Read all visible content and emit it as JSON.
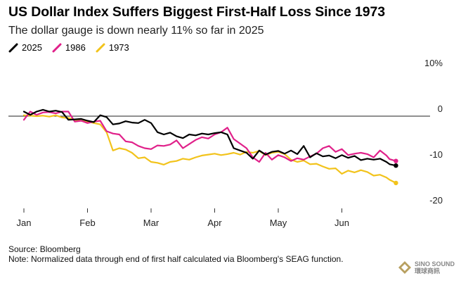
{
  "chart_data": {
    "type": "line",
    "title": "US Dollar Index Suffers Biggest First-Half Loss Since 1973",
    "subtitle": "The dollar gauge is down nearly 11% so far in 2025",
    "x_ticks": [
      "Jan",
      "Feb",
      "Mar",
      "Apr",
      "May",
      "Jun"
    ],
    "x_range": [
      0,
      6
    ],
    "y_ticks": [
      {
        "value": 10,
        "label": "10%"
      },
      {
        "value": 0,
        "label": "0"
      },
      {
        "value": -10,
        "label": "-10"
      },
      {
        "value": -20,
        "label": "-20"
      }
    ],
    "ylim": [
      -20,
      10
    ],
    "zero_line": true,
    "legend_position": "top-left",
    "series": [
      {
        "name": "2025",
        "color": "#000000",
        "x": [
          0.0,
          0.1,
          0.2,
          0.3,
          0.4,
          0.5,
          0.6,
          0.7,
          0.8,
          0.9,
          1.0,
          1.1,
          1.2,
          1.3,
          1.4,
          1.5,
          1.6,
          1.7,
          1.8,
          1.9,
          2.0,
          2.1,
          2.2,
          2.3,
          2.4,
          2.5,
          2.6,
          2.7,
          2.8,
          2.9,
          3.0,
          3.1,
          3.2,
          3.3,
          3.4,
          3.5,
          3.6,
          3.7,
          3.8,
          3.9,
          4.0,
          4.1,
          4.2,
          4.3,
          4.4,
          4.5,
          4.6,
          4.7,
          4.8,
          4.9,
          5.0,
          5.1,
          5.2,
          5.3,
          5.4,
          5.5,
          5.6,
          5.7,
          5.75,
          5.85
        ],
        "values": [
          1.0,
          0.3,
          1.0,
          1.4,
          1.0,
          1.2,
          0.9,
          -0.8,
          -0.7,
          -0.6,
          -1.0,
          -1.3,
          0.2,
          -0.2,
          -1.8,
          -1.6,
          -1.1,
          -1.4,
          -1.5,
          -0.8,
          -1.5,
          -3.5,
          -4.0,
          -3.6,
          -4.4,
          -4.8,
          -4.0,
          -4.2,
          -3.8,
          -4.0,
          -3.7,
          -3.5,
          -4.0,
          -7.0,
          -7.5,
          -8.0,
          -9.3,
          -7.5,
          -8.4,
          -7.8,
          -7.6,
          -8.2,
          -7.5,
          -8.3,
          -6.5,
          -9.0,
          -8.1,
          -8.8,
          -8.6,
          -9.2,
          -8.5,
          -9.1,
          -8.7,
          -9.6,
          -9.3,
          -9.5,
          -9.3,
          -10.0,
          -10.5,
          -10.8
        ]
      },
      {
        "name": "1986",
        "color": "#e0218a",
        "x": [
          0.0,
          0.1,
          0.2,
          0.3,
          0.4,
          0.5,
          0.6,
          0.7,
          0.8,
          0.9,
          1.0,
          1.1,
          1.2,
          1.3,
          1.4,
          1.5,
          1.6,
          1.7,
          1.8,
          1.9,
          2.0,
          2.1,
          2.2,
          2.3,
          2.4,
          2.5,
          2.6,
          2.7,
          2.8,
          2.9,
          3.0,
          3.1,
          3.2,
          3.3,
          3.4,
          3.5,
          3.6,
          3.7,
          3.8,
          3.9,
          4.0,
          4.1,
          4.2,
          4.3,
          4.4,
          4.5,
          4.6,
          4.7,
          4.8,
          4.9,
          5.0,
          5.1,
          5.2,
          5.3,
          5.4,
          5.5,
          5.6,
          5.7,
          5.75,
          5.85
        ],
        "values": [
          -0.8,
          1.0,
          0.3,
          0.8,
          0.9,
          0.6,
          1.0,
          1.0,
          -1.2,
          -1.0,
          -1.5,
          -1.2,
          -1.0,
          -3.3,
          -3.8,
          -4.0,
          -5.5,
          -5.7,
          -6.5,
          -7.0,
          -7.2,
          -6.4,
          -6.5,
          -6.2,
          -5.3,
          -7.0,
          -6.1,
          -5.2,
          -4.6,
          -4.9,
          -4.0,
          -3.5,
          -2.5,
          -5.0,
          -6.0,
          -7.0,
          -9.0,
          -10.0,
          -8.0,
          -9.5,
          -8.5,
          -9.0,
          -9.8,
          -9.2,
          -9.5,
          -8.8,
          -8.2,
          -7.0,
          -6.5,
          -7.8,
          -7.2,
          -8.5,
          -8.2,
          -8.0,
          -8.3,
          -9.0,
          -7.5,
          -8.6,
          -9.4,
          -9.8
        ]
      },
      {
        "name": "1973",
        "color": "#f2c31b",
        "x": [
          0.0,
          0.1,
          0.2,
          0.3,
          0.4,
          0.5,
          0.6,
          0.7,
          0.8,
          0.9,
          1.0,
          1.1,
          1.2,
          1.3,
          1.4,
          1.5,
          1.6,
          1.7,
          1.8,
          1.9,
          2.0,
          2.1,
          2.2,
          2.3,
          2.4,
          2.5,
          2.6,
          2.7,
          2.8,
          2.9,
          3.0,
          3.1,
          3.2,
          3.3,
          3.4,
          3.5,
          3.6,
          3.7,
          3.8,
          3.9,
          4.0,
          4.1,
          4.2,
          4.3,
          4.4,
          4.5,
          4.6,
          4.7,
          4.8,
          4.9,
          5.0,
          5.1,
          5.2,
          5.3,
          5.4,
          5.5,
          5.6,
          5.7,
          5.75,
          5.85
        ],
        "values": [
          0.2,
          0.1,
          0.0,
          0.1,
          -0.1,
          0.2,
          -0.3,
          -0.4,
          -0.8,
          -1.0,
          -1.2,
          -1.5,
          -1.8,
          -3.5,
          -7.5,
          -7.0,
          -7.3,
          -8.0,
          -9.2,
          -9.0,
          -10.0,
          -10.2,
          -10.6,
          -10.0,
          -9.8,
          -9.3,
          -9.5,
          -9.0,
          -8.6,
          -8.4,
          -8.2,
          -8.5,
          -8.3,
          -8.0,
          -8.4,
          -7.8,
          -8.0,
          -7.6,
          -8.5,
          -8.0,
          -7.8,
          -8.3,
          -9.5,
          -10.0,
          -9.7,
          -10.5,
          -10.4,
          -11.0,
          -11.5,
          -11.4,
          -12.6,
          -11.9,
          -12.3,
          -11.8,
          -12.2,
          -13.0,
          -12.8,
          -13.4,
          -13.9,
          -14.6
        ]
      }
    ]
  },
  "footer": {
    "source": "Source: Bloomberg",
    "note": "Note: Normalized data through end of first half calculated via Bloomberg's SEAG function."
  },
  "watermark": {
    "line1": "SINO SOUND",
    "line2": "環球商訊"
  }
}
